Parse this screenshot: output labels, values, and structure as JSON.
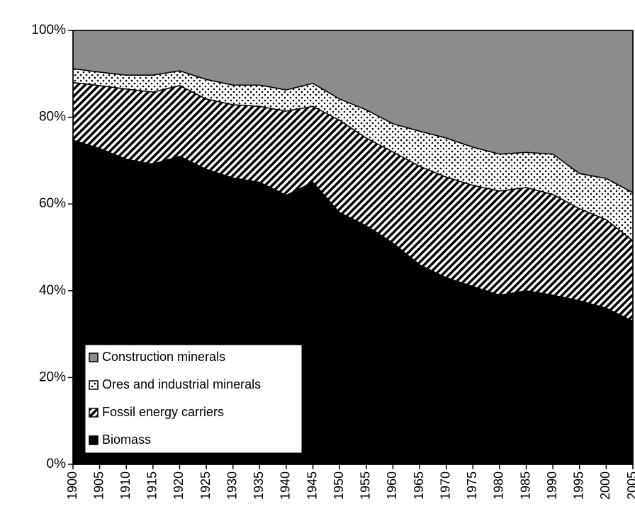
{
  "chart_data": {
    "type": "stacked_area",
    "x": [
      1900,
      1905,
      1910,
      1915,
      1920,
      1925,
      1930,
      1935,
      1940,
      1945,
      1950,
      1955,
      1960,
      1965,
      1970,
      1975,
      1980,
      1985,
      1990,
      1995,
      2000,
      2005
    ],
    "series": [
      {
        "name": "Construction minerals",
        "color": "#8c8c8c",
        "pattern": "solid",
        "values": [
          8.8,
          9.6,
          10.3,
          10.3,
          9.3,
          11.3,
          12.6,
          12.6,
          13.7,
          12.2,
          15.8,
          18.3,
          21.5,
          23.2,
          24.8,
          26.9,
          28.5,
          28.1,
          28.5,
          33,
          34.1,
          37.4
        ]
      },
      {
        "name": "Ores and industrial minerals",
        "color": "#ffffff",
        "pattern": "dots",
        "values": [
          3.2,
          3.1,
          3.2,
          3.9,
          3.4,
          4.5,
          4.5,
          4.9,
          4.9,
          5.3,
          4.9,
          6.5,
          6.5,
          8.1,
          9,
          8.8,
          8.5,
          8.1,
          9.3,
          8.1,
          9.5,
          11.1
        ]
      },
      {
        "name": "Fossil energy carriers",
        "color": "#ffffff",
        "pattern": "hatch",
        "values": [
          13.3,
          14.5,
          16.2,
          16.6,
          16.3,
          16.2,
          16.9,
          17.5,
          19.4,
          17.5,
          21.3,
          20.2,
          21,
          22.7,
          23.2,
          23.3,
          24,
          23.8,
          23.2,
          21.2,
          20.4,
          18.5
        ]
      },
      {
        "name": "Biomass",
        "color": "#000000",
        "pattern": "solid",
        "values": [
          74.7,
          72.8,
          70.3,
          69.2,
          71,
          68,
          66,
          65,
          62,
          65,
          58,
          55,
          51,
          46,
          43,
          41,
          39,
          40,
          39,
          37.7,
          36,
          33
        ]
      }
    ],
    "xlim": [
      1900,
      2005
    ],
    "xticks": [
      1900,
      1905,
      1910,
      1915,
      1920,
      1925,
      1930,
      1935,
      1940,
      1945,
      1950,
      1955,
      1960,
      1965,
      1970,
      1975,
      1980,
      1985,
      1990,
      1995,
      2000,
      2005
    ],
    "ylim": [
      0,
      100
    ],
    "yticks": [
      {
        "value": 0,
        "label": "0%"
      },
      {
        "value": 20,
        "label": "20%"
      },
      {
        "value": 40,
        "label": "40%"
      },
      {
        "value": 60,
        "label": "60%"
      },
      {
        "value": 80,
        "label": "80%"
      },
      {
        "value": 100,
        "label": "100%"
      }
    ],
    "legend": "lower left"
  }
}
